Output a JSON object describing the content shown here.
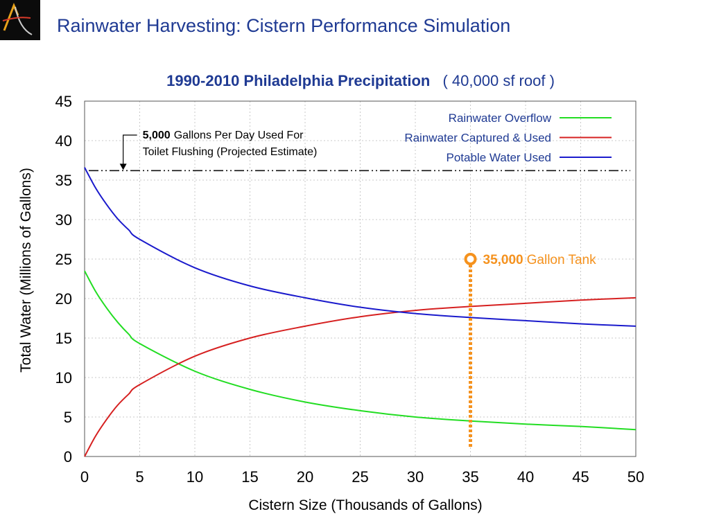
{
  "slide": {
    "title": "Rainwater Harvesting: Cistern Performance Simulation"
  },
  "colors": {
    "title_blue": "#1f3a93",
    "overflow": "#22dd22",
    "captured": "#d62020",
    "potable": "#1a1acc",
    "tank_marker": "#f5921e",
    "usage_line": "#111111"
  },
  "chart_data": {
    "type": "line",
    "title_bold": "1990-2010  Philadelphia Precipitation",
    "title_rest": "( 40,000 sf roof )",
    "xlabel": "Cistern Size (Thousands of Gallons)",
    "ylabel": "Total Water (Millions of Gallons)",
    "xlim": [
      0,
      50
    ],
    "ylim": [
      0,
      45
    ],
    "x_ticks": [
      "0",
      "5",
      "10",
      "15",
      "20",
      "25",
      "30",
      "35",
      "40",
      "45",
      "50"
    ],
    "y_ticks": [
      "0",
      "5",
      "10",
      "15",
      "20",
      "25",
      "30",
      "35",
      "40",
      "45"
    ],
    "grid": true,
    "legend_position": "top-right",
    "x": [
      0,
      1,
      2,
      3,
      4,
      5,
      10,
      15,
      20,
      25,
      30,
      35,
      40,
      45,
      50
    ],
    "series": [
      {
        "name": "Rainwater Overflow",
        "color_key": "overflow",
        "values": [
          23.5,
          20.9,
          18.8,
          17.0,
          15.5,
          14.3,
          10.8,
          8.5,
          6.9,
          5.8,
          5.0,
          4.5,
          4.1,
          3.8,
          3.4
        ]
      },
      {
        "name": "Rainwater Captured & Used",
        "color_key": "captured",
        "values": [
          0,
          2.6,
          4.7,
          6.5,
          7.9,
          9.1,
          12.7,
          15.0,
          16.5,
          17.7,
          18.5,
          19.0,
          19.4,
          19.8,
          20.1
        ]
      },
      {
        "name": "Potable Water Used",
        "color_key": "potable",
        "values": [
          36.6,
          34.0,
          31.9,
          30.1,
          28.7,
          27.5,
          23.9,
          21.6,
          20.1,
          18.9,
          18.1,
          17.6,
          17.2,
          16.8,
          16.5
        ]
      }
    ],
    "reference_line": {
      "y": 36.2,
      "bold": "5,000",
      "text_line1": "Gallons Per Day Used For",
      "text_line2": "Toilet Flushing (Projected Estimate)"
    },
    "marker": {
      "x": 35,
      "y": 25,
      "bold": "35,000",
      "text": "Gallon Tank"
    }
  }
}
